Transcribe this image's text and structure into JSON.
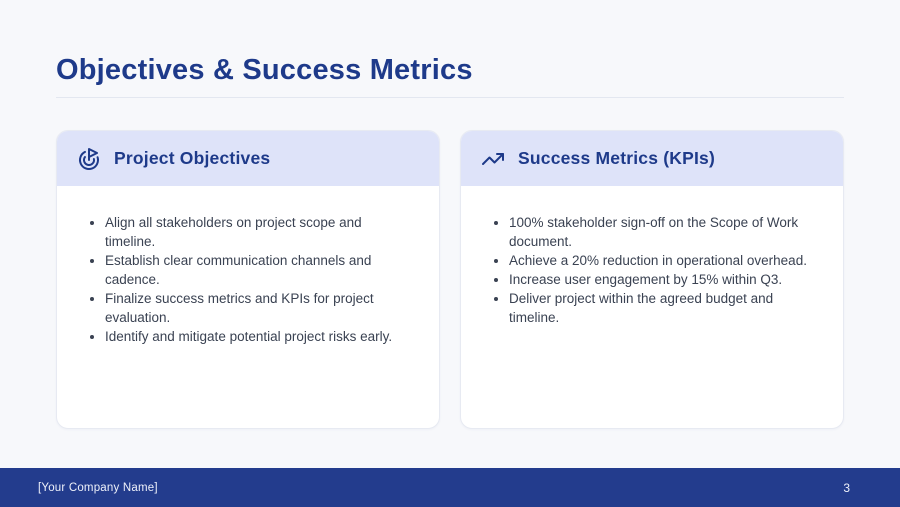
{
  "slide": {
    "title": "Objectives & Success Metrics"
  },
  "cards": [
    {
      "title": "Project Objectives",
      "icon": "goal-icon",
      "items": [
        "Align all stakeholders on project scope and timeline.",
        "Establish clear communication channels and cadence.",
        "Finalize success metrics and KPIs for project evaluation.",
        "Identify and mitigate potential project risks early."
      ]
    },
    {
      "title": "Success Metrics (KPIs)",
      "icon": "trending-up-icon",
      "items": [
        "100% stakeholder sign-off on the Scope of Work document.",
        "Achieve a 20% reduction in operational overhead.",
        "Increase user engagement by 15% within Q3.",
        "Deliver project within the agreed budget and timeline."
      ]
    }
  ],
  "footer": {
    "company": "[Your Company Name]",
    "page_number": "3"
  },
  "colors": {
    "accent": "#1e3a8a",
    "card_header_bg": "#dee3f9",
    "footer_bg": "#233c8d",
    "page_bg": "#f7f8fb",
    "body_text": "#3a4252"
  }
}
